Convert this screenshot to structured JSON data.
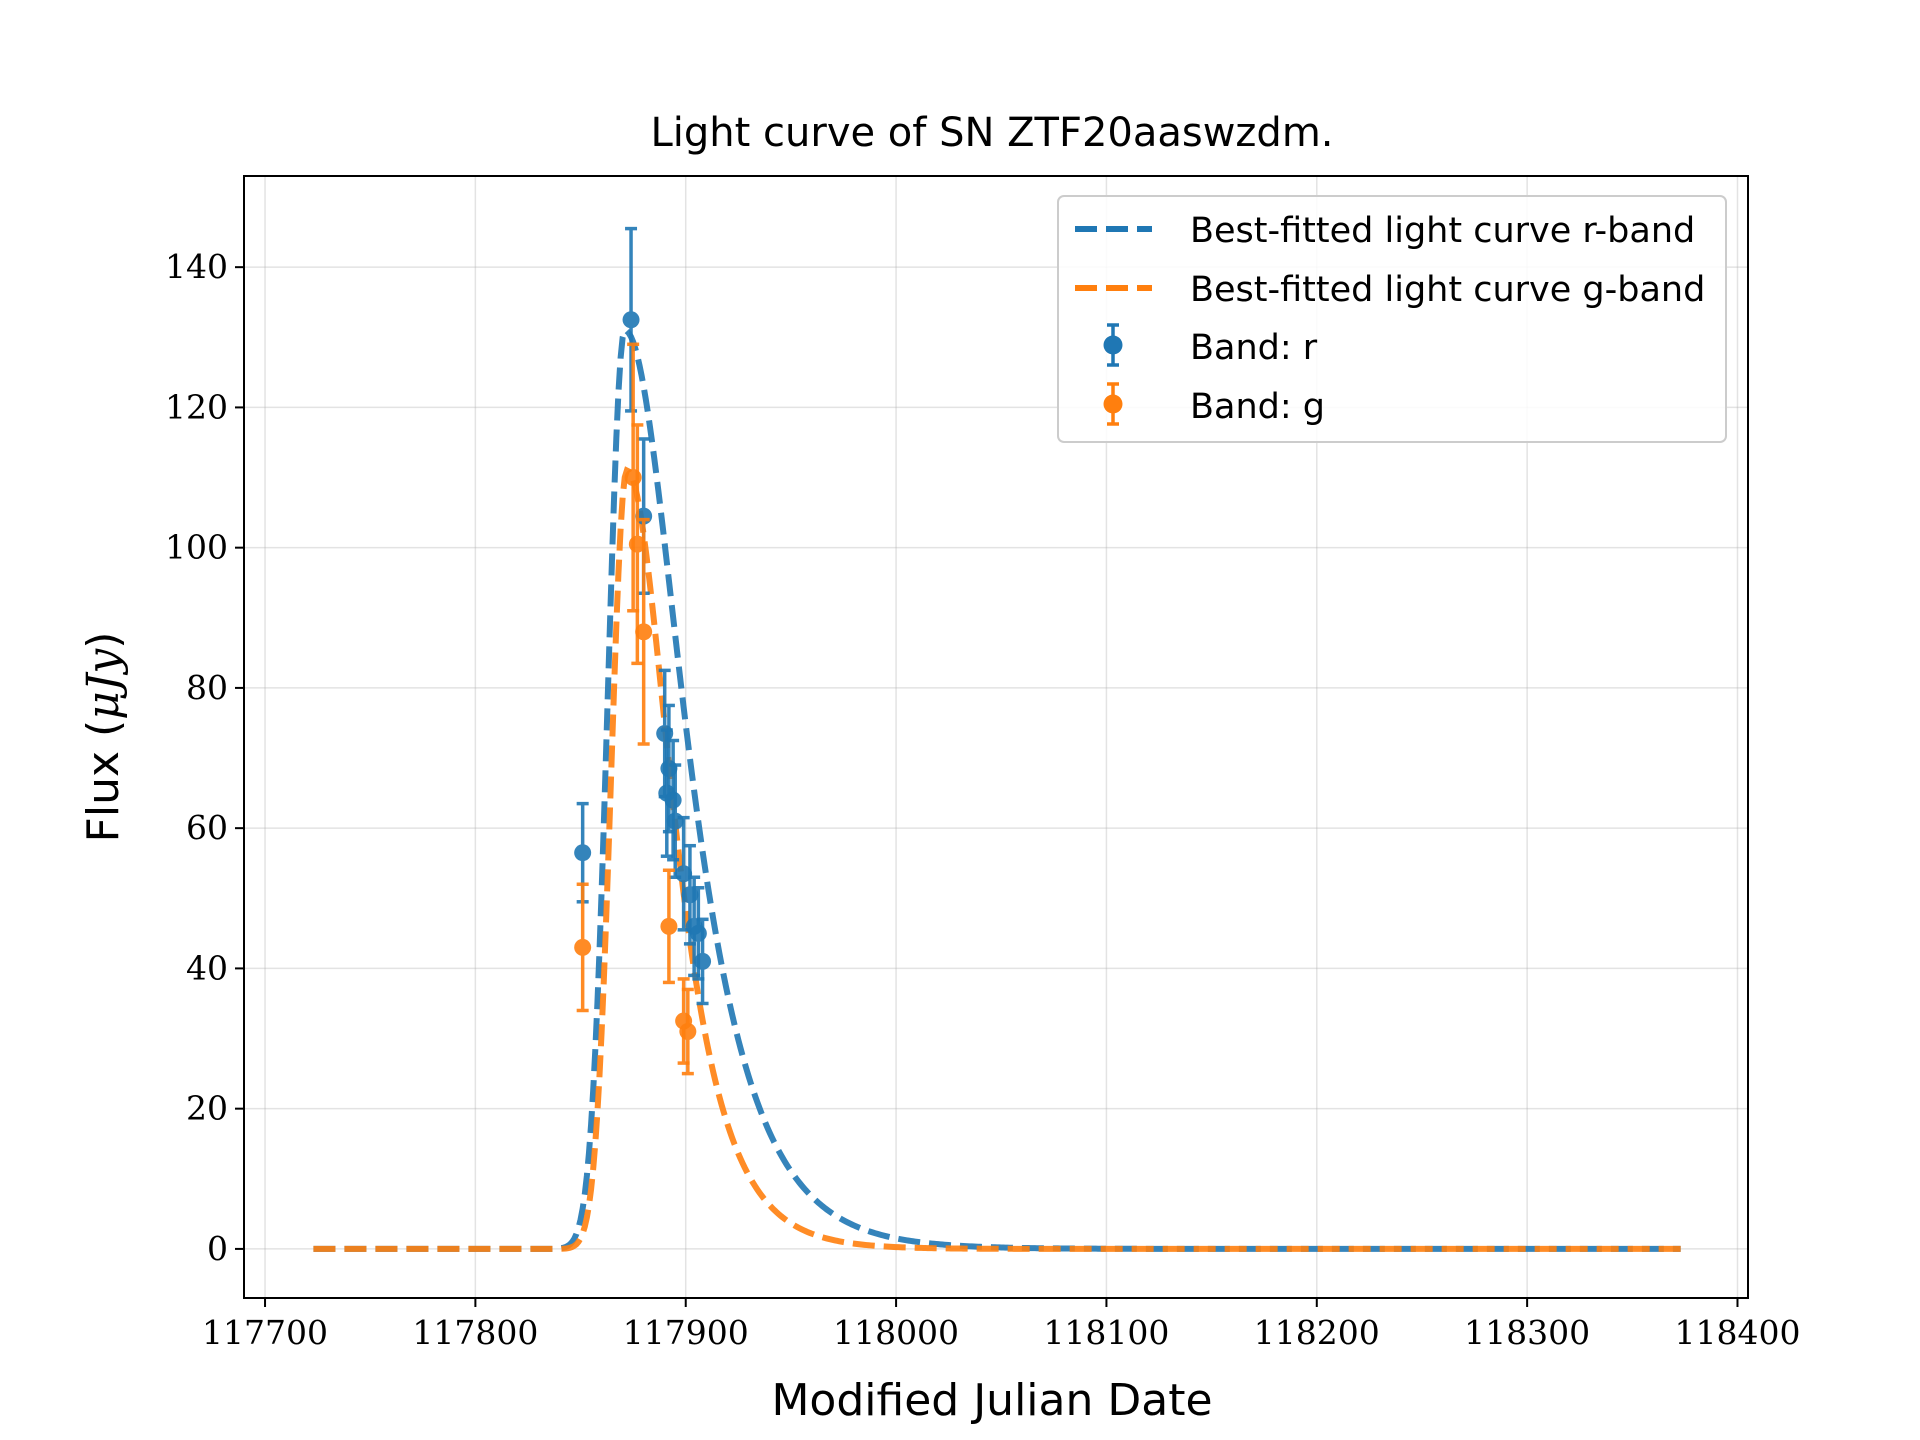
{
  "chart_data": {
    "type": "scatter",
    "title": "Light curve of SN ZTF20aaswzdm.",
    "xlabel": "Modified Julian Date",
    "ylabel_text": "Flux (",
    "ylabel_unit": "μJy",
    "ylabel_close": ")",
    "xlim": [
      117690,
      118405
    ],
    "ylim": [
      -7,
      153
    ],
    "xticks": [
      117700,
      117800,
      117900,
      118000,
      118100,
      118200,
      118300,
      118400
    ],
    "yticks": [
      0,
      20,
      40,
      60,
      80,
      100,
      120,
      140
    ],
    "grid": true,
    "legend_position": "top-right",
    "colors": {
      "r": "#1f77b4",
      "g": "#ff7f0e"
    },
    "fits": [
      {
        "name": "Best-fitted light curve r-band",
        "color": "#1f77b4",
        "peak_x": 117871,
        "amplitude": 131,
        "rise": 8,
        "fall": 25,
        "x_start": 117723,
        "x_end": 118373
      },
      {
        "name": "Best-fitted light curve g-band",
        "color": "#ff7f0e",
        "peak_x": 117872,
        "amplitude": 111,
        "rise": 7.5,
        "fall": 19,
        "x_start": 117723,
        "x_end": 118373
      }
    ],
    "series": [
      {
        "name": "Band: r",
        "color": "#1f77b4",
        "points": [
          {
            "x": 117851,
            "y": 56.5,
            "err": 7
          },
          {
            "x": 117874,
            "y": 132.5,
            "err": 13
          },
          {
            "x": 117880,
            "y": 104.5,
            "err": 11
          },
          {
            "x": 117890,
            "y": 73.5,
            "err": 9
          },
          {
            "x": 117891,
            "y": 65,
            "err": 9
          },
          {
            "x": 117892,
            "y": 68.5,
            "err": 9
          },
          {
            "x": 117894,
            "y": 64,
            "err": 8.5
          },
          {
            "x": 117895,
            "y": 61,
            "err": 8
          },
          {
            "x": 117899,
            "y": 53.5,
            "err": 8
          },
          {
            "x": 117902,
            "y": 50.5,
            "err": 7
          },
          {
            "x": 117904,
            "y": 46,
            "err": 7
          },
          {
            "x": 117906,
            "y": 45,
            "err": 6.5
          },
          {
            "x": 117908,
            "y": 41,
            "err": 6
          }
        ]
      },
      {
        "name": "Band: g",
        "color": "#ff7f0e",
        "points": [
          {
            "x": 117851,
            "y": 43,
            "err": 9
          },
          {
            "x": 117875,
            "y": 110,
            "err": 19
          },
          {
            "x": 117877,
            "y": 100.5,
            "err": 17
          },
          {
            "x": 117880,
            "y": 88,
            "err": 16
          },
          {
            "x": 117892,
            "y": 46,
            "err": 8
          },
          {
            "x": 117899,
            "y": 32.5,
            "err": 6
          },
          {
            "x": 117901,
            "y": 31,
            "err": 6
          }
        ]
      }
    ]
  }
}
